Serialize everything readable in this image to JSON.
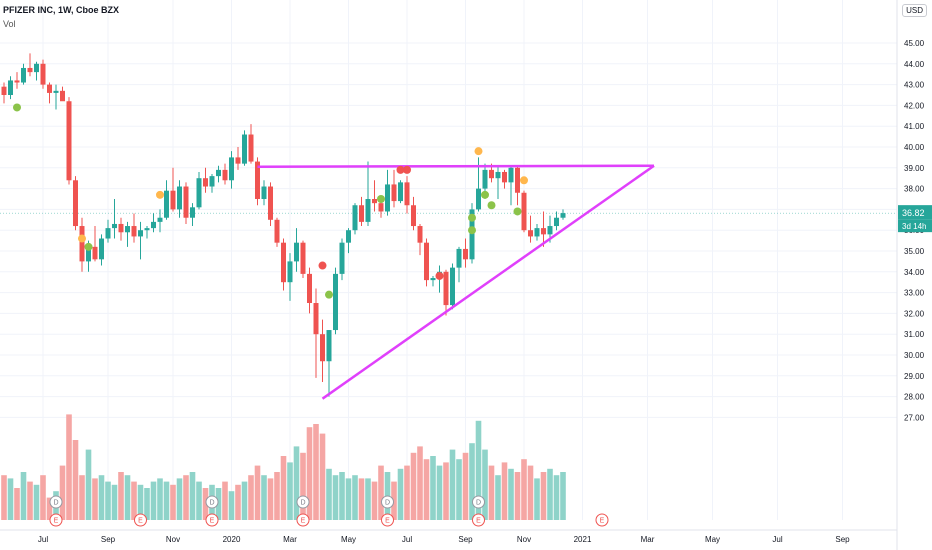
{
  "header": {
    "title": "PFIZER INC, 1W, Cboe BZX",
    "volume_label": "Vol",
    "currency": "USD"
  },
  "price_tag": {
    "last": "36.82",
    "countdown": "3d 14h"
  },
  "colors": {
    "up": "#26a69a",
    "down": "#ef5350",
    "vol_up": "#8fd3c9",
    "vol_down": "#f5a6a4",
    "pattern": "#e040fb",
    "grid": "#f0f3fa",
    "dot_green": "#8bc34a",
    "dot_red": "#ef5350",
    "dot_orange": "#ffb74d"
  },
  "chart_data": {
    "type": "candlestick",
    "title": "PFIZER INC, 1W, Cboe BZX",
    "ylim": [
      26.3,
      45.6
    ],
    "y_ticks": [
      "45.00",
      "44.00",
      "43.00",
      "42.00",
      "41.00",
      "40.00",
      "39.00",
      "38.00",
      "37.00",
      "36.00",
      "35.00",
      "34.00",
      "33.00",
      "32.00",
      "31.00",
      "30.00",
      "29.00",
      "28.00",
      "27.00"
    ],
    "x_labels": [
      "Jul",
      "Sep",
      "Nov",
      "2020",
      "Mar",
      "May",
      "Jul",
      "Sep",
      "Nov",
      "2021",
      "Mar",
      "May",
      "Jul",
      "Sep"
    ],
    "x_label_bar_index": [
      6,
      16,
      26,
      35,
      44,
      53,
      62,
      71,
      80,
      89,
      99,
      109,
      119,
      129
    ],
    "candles": [
      [
        42.9,
        43.1,
        42.1,
        42.5
      ],
      [
        42.5,
        43.4,
        42.3,
        43.2
      ],
      [
        43.2,
        43.6,
        42.8,
        43.1
      ],
      [
        43.1,
        44.0,
        43.0,
        43.8
      ],
      [
        43.8,
        44.5,
        43.4,
        43.6
      ],
      [
        43.6,
        44.1,
        43.2,
        44.0
      ],
      [
        44.0,
        44.2,
        42.8,
        43.0
      ],
      [
        43.0,
        43.1,
        42.1,
        42.6
      ],
      [
        42.6,
        43.0,
        41.8,
        42.7
      ],
      [
        42.7,
        42.9,
        42.3,
        42.2
      ],
      [
        42.2,
        42.4,
        38.2,
        38.4
      ],
      [
        38.4,
        38.6,
        36.0,
        36.2
      ],
      [
        36.2,
        36.6,
        34.0,
        34.5
      ],
      [
        34.5,
        35.5,
        34.0,
        35.2
      ],
      [
        35.2,
        36.2,
        34.5,
        34.6
      ],
      [
        34.6,
        35.8,
        34.3,
        35.6
      ],
      [
        35.6,
        36.5,
        35.4,
        36.1
      ],
      [
        36.1,
        37.5,
        35.6,
        36.3
      ],
      [
        36.3,
        36.6,
        35.5,
        35.9
      ],
      [
        35.9,
        36.4,
        35.2,
        36.2
      ],
      [
        36.2,
        36.8,
        35.4,
        35.7
      ],
      [
        35.7,
        36.4,
        34.6,
        36.0
      ],
      [
        36.0,
        36.2,
        35.6,
        36.1
      ],
      [
        36.1,
        36.8,
        35.9,
        36.4
      ],
      [
        36.4,
        37.0,
        35.9,
        36.6
      ],
      [
        36.6,
        38.4,
        36.5,
        37.9
      ],
      [
        37.9,
        39.0,
        36.9,
        37.0
      ],
      [
        37.0,
        38.4,
        36.6,
        38.1
      ],
      [
        38.1,
        38.3,
        36.3,
        36.6
      ],
      [
        36.6,
        37.3,
        36.2,
        37.1
      ],
      [
        37.1,
        38.8,
        37.0,
        38.5
      ],
      [
        38.5,
        39.0,
        37.8,
        38.1
      ],
      [
        38.1,
        38.7,
        37.8,
        38.6
      ],
      [
        38.6,
        39.1,
        38.3,
        38.9
      ],
      [
        38.9,
        39.2,
        38.2,
        38.4
      ],
      [
        38.4,
        39.8,
        38.0,
        39.5
      ],
      [
        39.5,
        40.0,
        38.9,
        39.2
      ],
      [
        39.2,
        40.8,
        39.1,
        40.6
      ],
      [
        40.6,
        41.1,
        39.2,
        39.3
      ],
      [
        39.3,
        39.5,
        37.2,
        37.5
      ],
      [
        37.5,
        38.4,
        37.2,
        38.1
      ],
      [
        38.1,
        38.3,
        36.2,
        36.5
      ],
      [
        36.5,
        36.6,
        35.2,
        35.4
      ],
      [
        35.4,
        35.6,
        33.1,
        33.5
      ],
      [
        33.5,
        34.9,
        32.6,
        34.5
      ],
      [
        34.5,
        36.1,
        34.0,
        35.4
      ],
      [
        35.4,
        35.5,
        33.7,
        33.9
      ],
      [
        33.9,
        34.2,
        32.0,
        32.5
      ],
      [
        32.5,
        33.2,
        28.9,
        31.0
      ],
      [
        31.0,
        31.7,
        28.7,
        29.7
      ],
      [
        29.7,
        31.2,
        28.0,
        31.2
      ],
      [
        31.2,
        34.2,
        31.0,
        33.9
      ],
      [
        33.9,
        35.6,
        33.6,
        35.4
      ],
      [
        35.4,
        36.1,
        34.9,
        36.0
      ],
      [
        36.0,
        37.3,
        35.8,
        37.2
      ],
      [
        37.2,
        37.6,
        36.2,
        36.4
      ],
      [
        36.4,
        39.3,
        36.2,
        37.5
      ],
      [
        37.5,
        38.4,
        36.9,
        37.3
      ],
      [
        37.3,
        37.6,
        36.6,
        36.9
      ],
      [
        36.9,
        38.9,
        36.7,
        38.2
      ],
      [
        38.2,
        38.9,
        37.1,
        37.4
      ],
      [
        37.4,
        38.4,
        37.3,
        38.3
      ],
      [
        38.3,
        38.6,
        36.8,
        37.2
      ],
      [
        37.2,
        37.6,
        36.0,
        36.2
      ],
      [
        36.2,
        36.3,
        34.8,
        35.4
      ],
      [
        35.4,
        35.6,
        33.3,
        33.6
      ],
      [
        33.6,
        33.8,
        33.3,
        33.7
      ],
      [
        33.7,
        34.3,
        33.0,
        34.0
      ],
      [
        34.0,
        34.1,
        31.9,
        32.4
      ],
      [
        32.4,
        34.4,
        32.2,
        34.2
      ],
      [
        34.2,
        35.2,
        33.5,
        35.1
      ],
      [
        35.1,
        35.6,
        34.2,
        34.6
      ],
      [
        34.6,
        37.3,
        34.4,
        37.0
      ],
      [
        37.0,
        39.5,
        36.9,
        38.0
      ],
      [
        38.0,
        39.2,
        37.5,
        38.9
      ],
      [
        38.9,
        39.2,
        38.3,
        38.5
      ],
      [
        38.5,
        39.1,
        37.5,
        38.8
      ],
      [
        38.8,
        38.9,
        38.0,
        38.3
      ],
      [
        38.3,
        39.1,
        37.2,
        39.0
      ],
      [
        39.0,
        39.1,
        37.2,
        37.8
      ],
      [
        37.8,
        37.9,
        35.9,
        36.0
      ],
      [
        36.0,
        36.7,
        35.4,
        35.7
      ],
      [
        35.7,
        36.3,
        35.5,
        36.1
      ],
      [
        36.1,
        36.9,
        35.2,
        35.8
      ],
      [
        35.8,
        36.7,
        35.4,
        36.2
      ],
      [
        36.2,
        36.9,
        36.0,
        36.6
      ],
      [
        36.6,
        37.0,
        36.5,
        36.82
      ]
    ],
    "volume": [
      14,
      13,
      10,
      15,
      12,
      11,
      14,
      7,
      9,
      17,
      33,
      25,
      14,
      22,
      13,
      14,
      12,
      11,
      15,
      14,
      12,
      11,
      10,
      12,
      13,
      12,
      11,
      13,
      14,
      15,
      12,
      10,
      11,
      10,
      12,
      9,
      11,
      12,
      14,
      17,
      14,
      13,
      15,
      20,
      18,
      23,
      21,
      29,
      30,
      27,
      16,
      14,
      15,
      13,
      14,
      13,
      13,
      12,
      17,
      15,
      12,
      16,
      17,
      21,
      23,
      19,
      20,
      17,
      18,
      22,
      19,
      21,
      24,
      31,
      22,
      17,
      14,
      18,
      16,
      15,
      19,
      17,
      13,
      15,
      16,
      14,
      15
    ],
    "vol_ylim": [
      0,
      60
    ],
    "earnings_badges": [
      {
        "bar": 8,
        "label": "D"
      },
      {
        "bar": 8,
        "label": "E"
      },
      {
        "bar": 21,
        "label": "E"
      },
      {
        "bar": 32,
        "label": "D"
      },
      {
        "bar": 32,
        "label": "E"
      },
      {
        "bar": 46,
        "label": "D"
      },
      {
        "bar": 46,
        "label": "E"
      },
      {
        "bar": 59,
        "label": "D"
      },
      {
        "bar": 59,
        "label": "E"
      },
      {
        "bar": 73,
        "label": "D"
      },
      {
        "bar": 73,
        "label": "E"
      },
      {
        "bar": 92,
        "label": "E"
      }
    ],
    "signal_dots": [
      {
        "bar": 2,
        "price": 41.9,
        "color": "green"
      },
      {
        "bar": 12,
        "price": 35.6,
        "color": "orange"
      },
      {
        "bar": 13,
        "price": 35.2,
        "color": "green"
      },
      {
        "bar": 24,
        "price": 37.7,
        "color": "orange"
      },
      {
        "bar": 49,
        "price": 34.3,
        "color": "red"
      },
      {
        "bar": 50,
        "price": 32.9,
        "color": "green"
      },
      {
        "bar": 58,
        "price": 37.5,
        "color": "green"
      },
      {
        "bar": 61,
        "price": 38.9,
        "color": "red"
      },
      {
        "bar": 62,
        "price": 38.9,
        "color": "red"
      },
      {
        "bar": 67,
        "price": 33.8,
        "color": "red"
      },
      {
        "bar": 73,
        "price": 39.8,
        "color": "orange"
      },
      {
        "bar": 74,
        "price": 37.7,
        "color": "green"
      },
      {
        "bar": 75,
        "price": 37.2,
        "color": "green"
      },
      {
        "bar": 72,
        "price": 36.6,
        "color": "green"
      },
      {
        "bar": 72,
        "price": 36.0,
        "color": "green"
      },
      {
        "bar": 79,
        "price": 36.9,
        "color": "green"
      },
      {
        "bar": 80,
        "price": 38.4,
        "color": "orange"
      }
    ],
    "trendlines": [
      {
        "from": {
          "bar": 39,
          "price": 39.05
        },
        "to": {
          "bar": 100,
          "price": 39.1
        }
      },
      {
        "from": {
          "bar": 49,
          "price": 27.9
        },
        "to": {
          "bar": 100,
          "price": 39.1
        }
      }
    ]
  }
}
